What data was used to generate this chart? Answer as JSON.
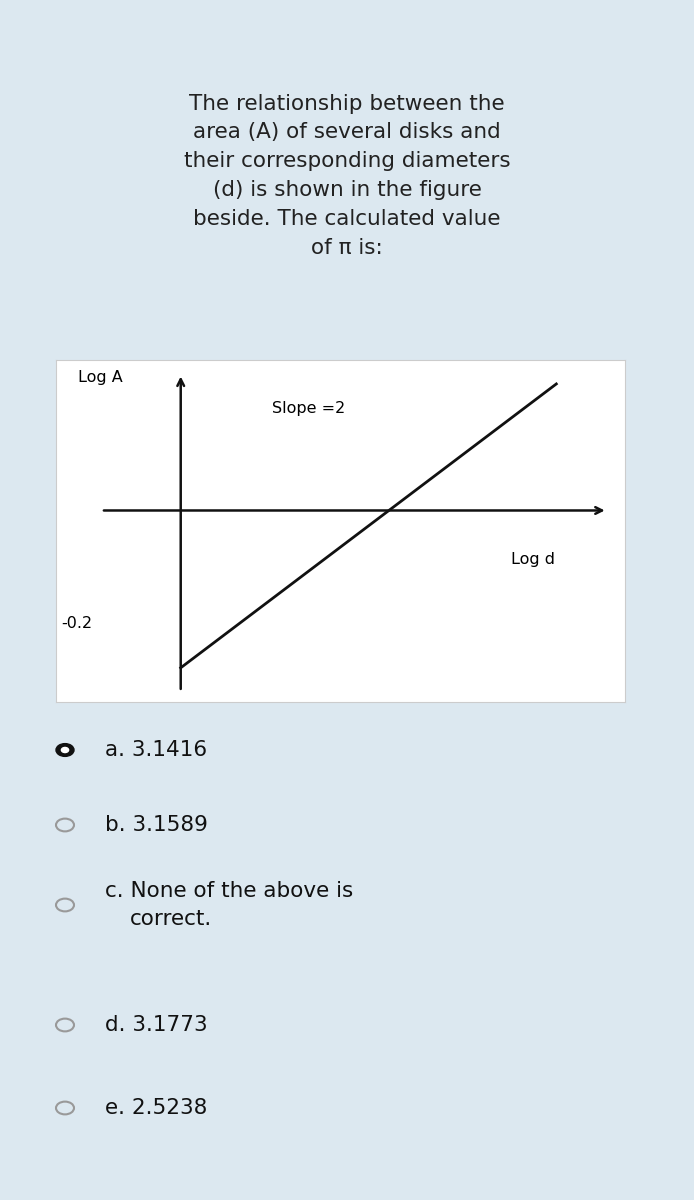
{
  "background_color": "#dce8f0",
  "graph_bg_color": "#ffffff",
  "title_text": "The relationship between the\narea (A) of several disks and\ntheir corresponding diameters\n(d) is shown in the figure\nbeside. The calculated value\nof π is:",
  "title_fontsize": 15.5,
  "title_color": "#222222",
  "graph_xlabel": "Log d",
  "graph_ylabel": "Log A",
  "slope_label": "Slope =2",
  "y_intercept_label": "-0.2",
  "options": [
    {
      "label": "a. 3.1416",
      "selected": true
    },
    {
      "label": "b. 3.1589",
      "selected": false
    },
    {
      "label": "c. None of the above is\ncorrect.",
      "selected": false
    },
    {
      "label": "d. 3.1773",
      "selected": false
    },
    {
      "label": "e. 2.5238",
      "selected": false
    }
  ],
  "option_fontsize": 15.5,
  "option_color": "#222222",
  "graph_border_color": "#cccccc",
  "axis_color": "#111111",
  "line_color": "#111111"
}
